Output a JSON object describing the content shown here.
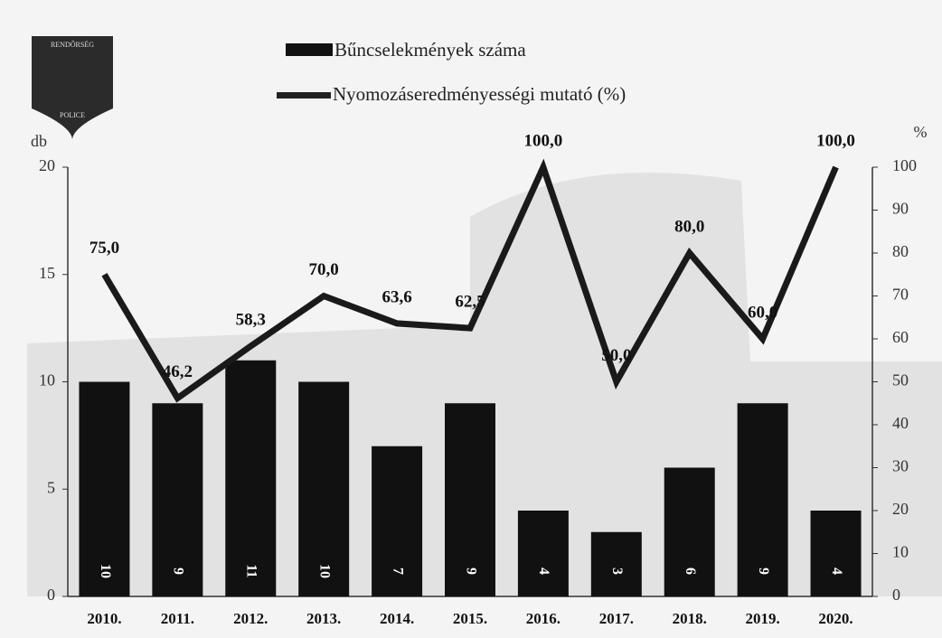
{
  "chart_data": {
    "type": "bar_line",
    "badge": [
      "RENDŐRSÉG",
      "POLICE"
    ],
    "y_label": "db",
    "y2_label": "%",
    "categories": [
      "2010.",
      "2011.",
      "2012.",
      "2013.",
      "2014.",
      "2015.",
      "2016.",
      "2017.",
      "2018.",
      "2019.",
      "2020."
    ],
    "series": [
      {
        "name": "Bűncselekmények száma",
        "color": "#111111",
        "type": "bar",
        "values": [
          10,
          9,
          11,
          10,
          7,
          9,
          4,
          3,
          6,
          9,
          4
        ]
      },
      {
        "name": "Nyomozáseredményességi mutató (%)",
        "color": "#1a1a1a",
        "type": "line",
        "axis": "y2",
        "values": [
          75.0,
          46.2,
          58.3,
          70.0,
          63.6,
          62.5,
          100.0,
          50.0,
          80.0,
          60.0,
          100.0
        ],
        "value_labels": [
          "75,0",
          "46,2",
          "58,3",
          "70,0",
          "63,6",
          "62,5",
          "100,0",
          "50,0",
          "80,0",
          "60,0",
          "100,0"
        ]
      }
    ],
    "ylim": [
      0,
      20
    ],
    "yticks": [
      0,
      5,
      10,
      15,
      20
    ],
    "y2lim": [
      0,
      100
    ],
    "y2ticks": [
      0,
      10,
      20,
      30,
      40,
      50,
      60,
      70,
      80,
      90,
      100
    ]
  }
}
